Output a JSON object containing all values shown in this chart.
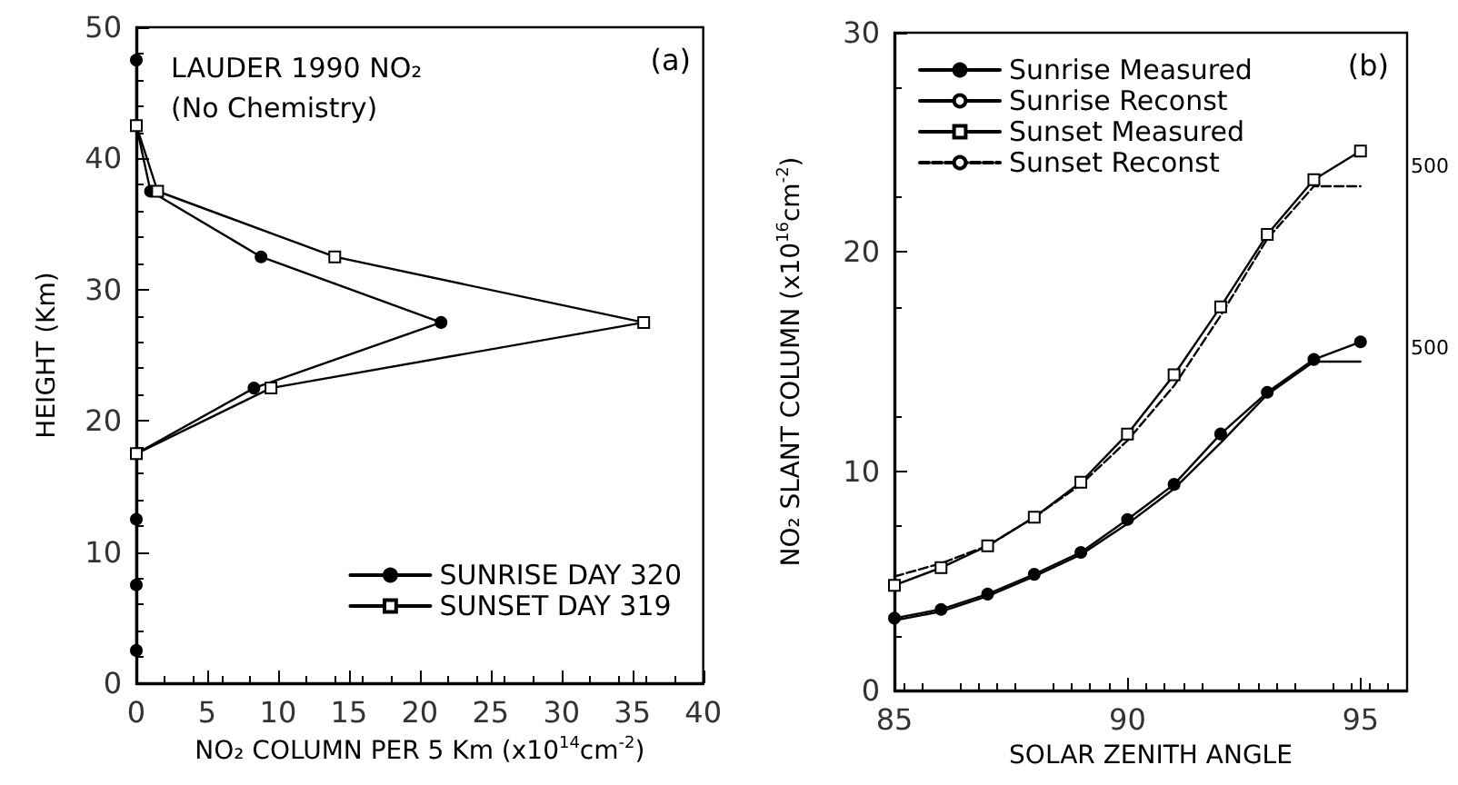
{
  "chart_data": [
    {
      "type": "line",
      "title": "LAUDER 1990 NO₂",
      "subtitle": "(No Chemistry)",
      "xlabel": "NO₂ COLUMN PER 5 Km (x10$^{14}$cm$^{-2}$)",
      "ylabel": "HEIGHT (Km)",
      "annotations": [
        "(a)"
      ],
      "series": [
        {
          "name": "SUNRISE DAY 320",
          "color": "#000000",
          "marker": "circle",
          "x": [
            0,
            0,
            1,
            8.8,
            21.5,
            8.3,
            0,
            0,
            0,
            0
          ],
          "values": [
            47.5,
            42.5,
            37.5,
            32.5,
            27.5,
            22.5,
            17.5,
            12.5,
            7.5,
            2.5
          ]
        },
        {
          "name": "SUNSET DAY 319",
          "color": "#000000",
          "marker": "square",
          "x": [
            0,
            1.5,
            14,
            35.8,
            9.5,
            0
          ],
          "values": [
            42.5,
            37.5,
            32.5,
            27.5,
            22.5,
            17.5
          ]
        }
      ],
      "xlim": [
        0,
        40
      ],
      "xticks": [
        0,
        5,
        10,
        15,
        20,
        25,
        30,
        35,
        40
      ],
      "ylim": [
        0,
        50
      ],
      "yticks": [
        0,
        10,
        20,
        30,
        40,
        50
      ],
      "grid": false,
      "legend": "bottom right",
      "line_style": "solid"
    },
    {
      "type": "line",
      "xlabel": "SOLAR ZENITH ANGLE",
      "ylabel": "NO₂ SLANT COLUMN (x10$^{16}$cm$^{-2}$)",
      "annotations": [
        "(b)",
        "500",
        "500"
      ],
      "x": [
        85,
        86,
        87,
        88,
        89,
        90,
        91,
        92,
        93,
        94,
        95
      ],
      "series": [
        {
          "name": "Sunrise Measured",
          "color": "#000000",
          "marker": "circle",
          "line_style": "solid",
          "values": [
            3.3,
            3.7,
            4.4,
            5.3,
            6.3,
            7.8,
            9.4,
            11.7,
            13.6,
            15.1,
            15.9
          ]
        },
        {
          "name": "Sunrise Reconst",
          "color": "#000000",
          "marker": "none",
          "line_style": "solid",
          "values": [
            3.2,
            3.6,
            4.3,
            5.2,
            6.2,
            7.6,
            9.2,
            11.3,
            13.5,
            15.0,
            15.0
          ]
        },
        {
          "name": "Sunset Measured",
          "color": "#000000",
          "marker": "square",
          "line_style": "solid",
          "values": [
            4.8,
            5.6,
            6.6,
            7.9,
            9.5,
            11.7,
            14.4,
            17.5,
            20.8,
            23.3,
            24.6
          ]
        },
        {
          "name": "Sunset Reconst",
          "color": "#000000",
          "marker": "none",
          "line_style": "dashed",
          "values": [
            5.2,
            5.8,
            6.6,
            7.9,
            9.4,
            11.4,
            13.9,
            17.1,
            20.6,
            23.0,
            23.0
          ]
        }
      ],
      "xlim": [
        85,
        96
      ],
      "xticks": [
        85,
        90,
        95
      ],
      "ylim": [
        0,
        30
      ],
      "yticks": [
        0,
        10,
        20,
        30
      ],
      "grid": false,
      "legend": "top left"
    }
  ]
}
